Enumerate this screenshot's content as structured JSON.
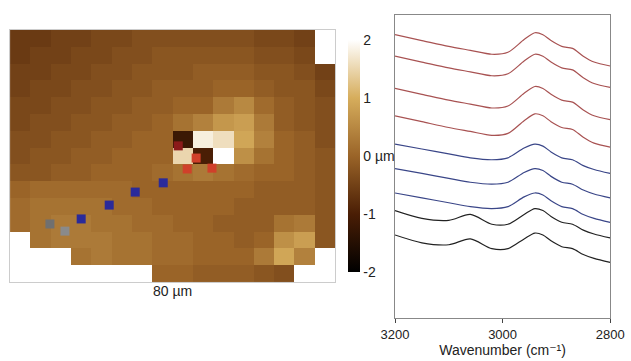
{
  "chart_data": [
    {
      "type": "heatmap",
      "xlabel": "80 µm",
      "x": [
        2.5,
        7.5,
        12.5,
        17.5,
        22.5,
        27.5,
        32.5,
        37.5,
        42.5,
        47.5,
        52.5,
        57.5,
        62.5,
        67.5,
        72.5,
        77.5
      ],
      "y": [
        2,
        6,
        10,
        14,
        18,
        22,
        26,
        30,
        34,
        38,
        42,
        46,
        50,
        54,
        58
      ],
      "z": [
        [
          null,
          null,
          null,
          null,
          null,
          null,
          null,
          0.0,
          0.0,
          -0.1,
          -0.1,
          -0.1,
          -0.2,
          -0.3,
          null,
          null
        ],
        [
          null,
          null,
          null,
          0.2,
          0.3,
          0.2,
          0.2,
          0.1,
          0.1,
          0.0,
          0.0,
          0.0,
          0.3,
          0.9,
          0.4,
          null
        ],
        [
          null,
          0.2,
          0.3,
          0.3,
          0.3,
          0.2,
          0.2,
          0.1,
          0.1,
          0.0,
          0.0,
          -0.1,
          0.0,
          0.6,
          0.8,
          -0.2
        ],
        [
          0.1,
          0.2,
          0.3,
          0.3,
          0.2,
          0.2,
          0.1,
          0.1,
          0.0,
          0.0,
          -0.1,
          -0.1,
          -0.1,
          0.2,
          0.3,
          -0.2
        ],
        [
          0.1,
          0.2,
          0.2,
          0.2,
          0.2,
          0.1,
          0.1,
          0.0,
          0.0,
          0.0,
          0.0,
          -0.1,
          -0.1,
          -0.1,
          -0.1,
          -0.2
        ],
        [
          0.0,
          0.1,
          0.1,
          0.1,
          0.1,
          0.1,
          0.0,
          0.0,
          0.0,
          0.0,
          0.0,
          0.0,
          -0.1,
          -0.1,
          -0.1,
          -0.2
        ],
        [
          -0.2,
          -0.2,
          -0.1,
          -0.1,
          0.0,
          0.0,
          0.0,
          0.1,
          0.2,
          0.3,
          0.2,
          0.1,
          0.0,
          0.0,
          -0.1,
          -0.2
        ],
        [
          -0.3,
          -0.2,
          -0.2,
          -0.1,
          -0.1,
          0.0,
          0.0,
          0.0,
          1.5,
          -1.0,
          2.0,
          0.6,
          0.2,
          0.0,
          -0.1,
          -0.2
        ],
        [
          -0.3,
          -0.3,
          -0.2,
          -0.2,
          -0.1,
          -0.1,
          0.0,
          0.0,
          -1.2,
          1.8,
          1.6,
          0.9,
          0.4,
          0.0,
          -0.1,
          -0.3
        ],
        [
          -0.4,
          -0.3,
          -0.3,
          -0.2,
          -0.2,
          -0.1,
          -0.1,
          0.0,
          0.2,
          0.4,
          0.7,
          0.8,
          0.3,
          -0.1,
          -0.2,
          -0.3
        ],
        [
          -0.4,
          -0.4,
          -0.3,
          -0.3,
          -0.2,
          -0.2,
          -0.1,
          -0.1,
          0.0,
          0.0,
          0.3,
          0.5,
          0.1,
          -0.1,
          -0.2,
          -0.3
        ],
        [
          -0.5,
          -0.4,
          -0.4,
          -0.3,
          -0.3,
          -0.2,
          -0.2,
          -0.1,
          -0.1,
          -0.1,
          0.0,
          0.0,
          -0.1,
          -0.2,
          -0.2,
          -0.4
        ],
        [
          -0.5,
          -0.5,
          -0.4,
          -0.4,
          -0.3,
          -0.3,
          -0.2,
          -0.2,
          -0.2,
          -0.1,
          -0.1,
          -0.1,
          -0.2,
          -0.2,
          -0.3,
          -0.5
        ],
        [
          -0.6,
          -0.5,
          -0.5,
          -0.4,
          -0.4,
          -0.3,
          -0.3,
          -0.2,
          -0.2,
          -0.2,
          -0.2,
          -0.2,
          -0.3,
          -0.3,
          -0.4,
          null
        ],
        [
          -0.6,
          -0.6,
          -0.5,
          -0.5,
          -0.4,
          -0.4,
          -0.3,
          -0.3,
          -0.3,
          -0.3,
          -0.3,
          -0.3,
          -0.4,
          -0.4,
          -0.5,
          null
        ]
      ],
      "xlim": [
        0,
        80
      ],
      "ylim": [
        0,
        60
      ],
      "colorbar": {
        "range": [
          -2,
          2
        ],
        "ticks": [
          -2,
          -1,
          {
            "value": 0,
            "label": "0 µm"
          },
          1,
          2
        ]
      },
      "tick_labels": false,
      "series": [
        {
          "type": "scatter",
          "marker": "square",
          "x": [
            41.4,
            45.8,
            43.6,
            49.7,
            37.7,
            30.8,
            24.4,
            17.5,
            9.8,
            13.5
          ],
          "values": [
            32.4,
            29.5,
            26.9,
            27.1,
            23.6,
            21.4,
            18.3,
            15.0,
            13.8,
            12.1
          ],
          "colors": [
            "#8b1a1a",
            "#d0402a",
            "#d0402a",
            "#d0402a",
            "#2a2a9a",
            "#2a2a9a",
            "#2a2a9a",
            "#2a2a9a",
            "#707070",
            "#8a8a8a"
          ]
        }
      ]
    },
    {
      "type": "line",
      "xlabel": "Wavenumber (cm⁻¹)",
      "x": [
        3200,
        3150,
        3100,
        3060,
        3020,
        2990,
        2960,
        2940,
        2925,
        2910,
        2890,
        2870,
        2850,
        2830,
        2800
      ],
      "xlim": [
        3200,
        2800
      ],
      "xticks": [
        3200,
        3000,
        2800
      ],
      "ylim": [
        0,
        310
      ],
      "tick_labels": "x",
      "series": [
        {
          "color": "#a85252",
          "values": [
            290,
            284,
            278,
            274,
            270,
            272,
            285,
            292,
            290,
            284,
            278,
            276,
            268,
            262,
            258
          ]
        },
        {
          "color": "#a85252",
          "values": [
            268,
            262,
            256,
            252,
            248,
            250,
            263,
            270,
            268,
            262,
            256,
            254,
            246,
            240,
            236
          ]
        },
        {
          "color": "#a85252",
          "values": [
            235,
            229,
            223,
            219,
            215,
            217,
            230,
            237,
            235,
            229,
            223,
            221,
            213,
            207,
            203
          ]
        },
        {
          "color": "#a85252",
          "values": [
            207,
            201,
            195,
            191,
            187,
            189,
            202,
            209,
            207,
            201,
            195,
            193,
            185,
            179,
            175
          ]
        },
        {
          "color": "#3a4688",
          "values": [
            178,
            173,
            168,
            164,
            162,
            164,
            174,
            178,
            176,
            170,
            164,
            162,
            156,
            152,
            148
          ]
        },
        {
          "color": "#3a4688",
          "values": [
            153,
            148,
            143,
            139,
            137,
            139,
            149,
            153,
            151,
            145,
            139,
            137,
            131,
            127,
            123
          ]
        },
        {
          "color": "#3a4688",
          "values": [
            128,
            123,
            118,
            114,
            112,
            114,
            124,
            128,
            126,
            120,
            114,
            112,
            106,
            102,
            98
          ]
        },
        {
          "color": "#222222",
          "values": [
            110,
            102,
            100,
            106,
            96,
            96,
            106,
            112,
            110,
            104,
            98,
            96,
            90,
            86,
            82
          ]
        },
        {
          "color": "#222222",
          "values": [
            85,
            77,
            75,
            81,
            71,
            71,
            81,
            87,
            85,
            79,
            73,
            71,
            65,
            61,
            57
          ]
        }
      ]
    }
  ]
}
